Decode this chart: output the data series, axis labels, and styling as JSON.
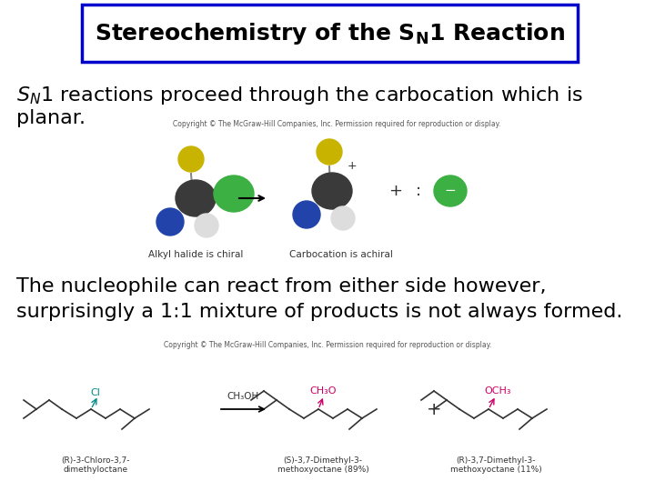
{
  "background_color": "#ffffff",
  "title_box_edge_color": "#0000cc",
  "title_box_face_color": "#ffffff",
  "title_text": "Stereochemistry of the $\\mathbf{S_N}$1 Reaction",
  "title_fontsize": 18,
  "body1_line1": "$S_N$1 reactions proceed through the carbocation which is",
  "body1_line2": "planar.",
  "body1_fontsize": 16,
  "body2_line1": "The nucleophile can react from either side however,",
  "body2_line2": "surprisingly a 1:1 mixture of products is not always formed.",
  "body2_fontsize": 16,
  "copyright_text": "Copyright © The McGraw-Hill Companies, Inc. Permission required for reproduction or display.",
  "copyright_fontsize": 5.5,
  "copyright_color": "#555555",
  "text_color": "#000000",
  "diag1_label_left": "Alkyl halide is chiral",
  "diag1_label_right": "Carbocation is achiral",
  "diag_label_fontsize": 7.5,
  "diag2_label_left": "(R)-3-Chloro-3,7-\ndimethyloctane",
  "diag2_label_mid": "(S)-3,7-Dimethyl-3-\nmethoxyoctane (89%)",
  "diag2_label_right": "(R)-3,7-Dimethyl-3-\nmethoxyoctane (11%)",
  "diag2_ch3oh": "CH₃OH",
  "diag2_ch3o": "CH₃O",
  "diag2_och3": "OCH₃",
  "diag2_cl": "Cl",
  "magenta_color": "#cc0066",
  "teal_color": "#008b8b",
  "green_color": "#228b22",
  "atom_dark": "#3a3a3a",
  "atom_yellow": "#c8b400",
  "atom_green": "#3cb043",
  "atom_blue": "#2244aa",
  "atom_gray": "#aaaaaa",
  "atom_white": "#dddddd"
}
